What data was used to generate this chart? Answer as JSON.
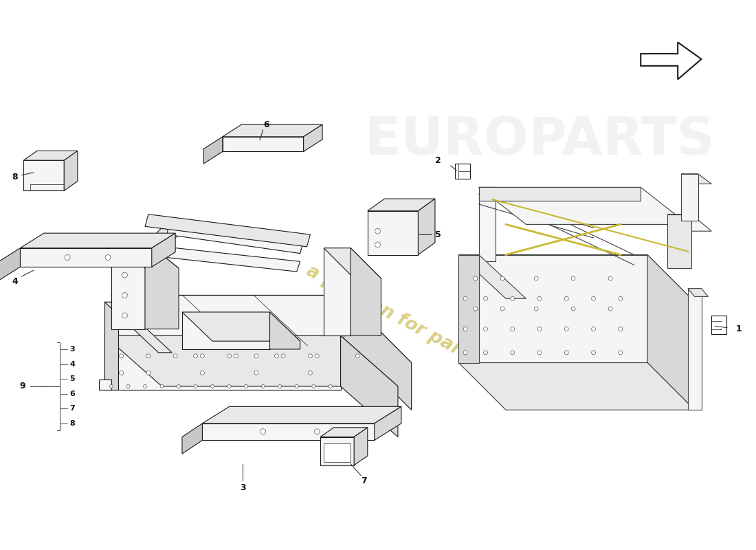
{
  "background_color": "#ffffff",
  "line_color": "#1a1a1a",
  "watermark_color": "#d4c870",
  "label_color": "#111111",
  "figsize": [
    11.0,
    8.0
  ],
  "dpi": 100,
  "lw_main": 0.8,
  "lw_thin": 0.5,
  "face_light": "#f5f5f5",
  "face_mid": "#e8e8e8",
  "face_dark": "#d8d8d8",
  "face_darkest": "#c8c8c8",
  "yellow": "#c8b832"
}
